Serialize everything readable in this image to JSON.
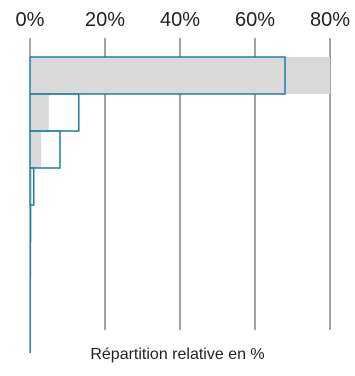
{
  "chart_data": {
    "type": "bar",
    "orientation": "horizontal",
    "xlabel": "Répartition relative en %",
    "xlim": [
      0,
      80
    ],
    "x_ticks": [
      0,
      20,
      40,
      60,
      80
    ],
    "x_tick_labels": [
      "0%",
      "20%",
      "40%",
      "60%",
      "80%"
    ],
    "grid": true,
    "legend": "none",
    "series": [
      {
        "style": "filled",
        "color": "#d9d9d9",
        "values": [
          80,
          5,
          3,
          0.6,
          0.2,
          0.1,
          0.1,
          0
        ]
      },
      {
        "style": "outline",
        "color": "#1f7ea8",
        "values": [
          68,
          13,
          8,
          1,
          0.3,
          0.2,
          0.1,
          0.1
        ]
      }
    ]
  }
}
